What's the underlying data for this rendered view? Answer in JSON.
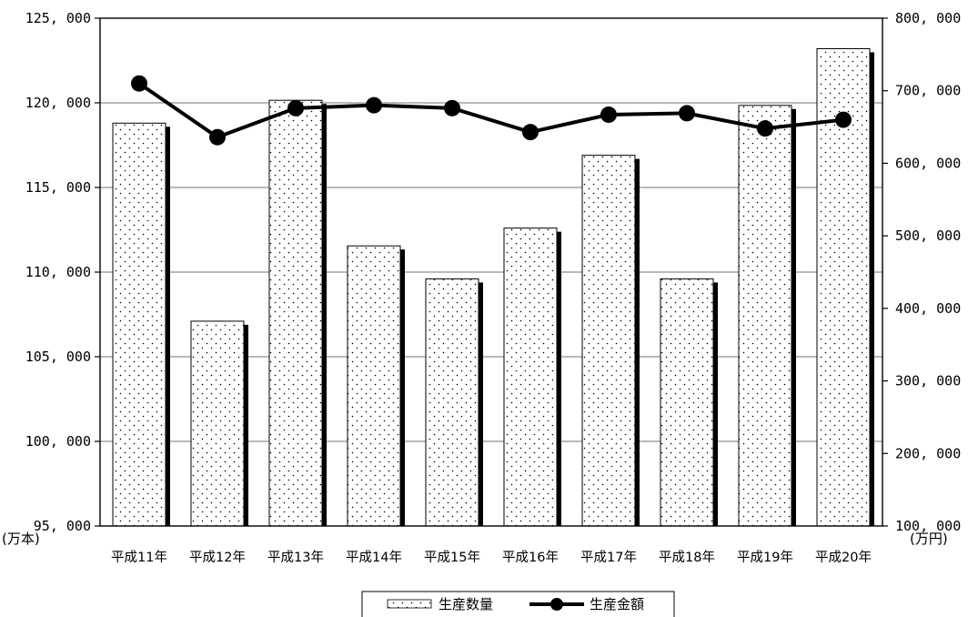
{
  "chart_data": {
    "type": "bar",
    "categories": [
      "平成11年",
      "平成12年",
      "平成13年",
      "平成14年",
      "平成15年",
      "平成16年",
      "平成17年",
      "平成18年",
      "平成19年",
      "平成20年"
    ],
    "series": [
      {
        "name": "生産数量",
        "type": "bar",
        "axis": "left",
        "values": [
          118800,
          107100,
          120150,
          111550,
          109600,
          112600,
          116900,
          109600,
          119850,
          123200
        ]
      },
      {
        "name": "生産金額",
        "type": "line",
        "axis": "right",
        "values": [
          710000,
          636000,
          676000,
          680000,
          676000,
          643000,
          667000,
          669000,
          648000,
          660000
        ]
      }
    ],
    "y_left": {
      "unit_label": "(万本)",
      "ylim": [
        95000,
        125000
      ],
      "ticks": [
        "95, 000",
        "100, 000",
        "105, 000",
        "110, 000",
        "115, 000",
        "120, 000",
        "125, 000"
      ]
    },
    "y_right": {
      "unit_label": "(万円)",
      "ylim": [
        100000,
        800000
      ],
      "ticks": [
        "100, 000",
        "200, 000",
        "300, 000",
        "400, 000",
        "500, 000",
        "600, 000",
        "700, 000",
        "800, 000"
      ]
    },
    "grid": true,
    "legend": {
      "placement": "bottom-center",
      "items": [
        "生産数量",
        "生産金額"
      ]
    }
  }
}
